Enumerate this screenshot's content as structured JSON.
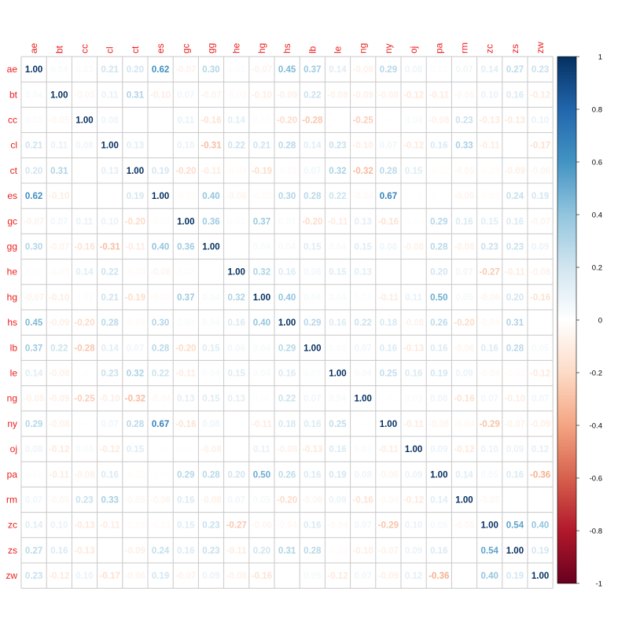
{
  "chart_data": {
    "type": "heatmap",
    "variables": [
      "ae",
      "bt",
      "cc",
      "cl",
      "ct",
      "es",
      "gc",
      "gg",
      "he",
      "hg",
      "hs",
      "lb",
      "le",
      "ng",
      "ny",
      "oj",
      "pa",
      "rm",
      "zc",
      "zs",
      "zw"
    ],
    "matrix": [
      [
        1.0,
        0.04,
        0.03,
        0.21,
        0.2,
        0.62,
        -0.07,
        0.3,
        0.02,
        -0.07,
        0.45,
        0.37,
        0.14,
        -0.08,
        0.29,
        0.08,
        0.02,
        0.07,
        0.14,
        0.27,
        0.23
      ],
      [
        0.04,
        1.0,
        -0.05,
        0.11,
        0.31,
        -0.1,
        0.07,
        -0.07,
        -0.03,
        -0.1,
        -0.09,
        0.22,
        -0.08,
        -0.09,
        -0.08,
        -0.12,
        -0.11,
        -0.05,
        0.1,
        0.16,
        -0.12
      ],
      [
        0.03,
        -0.05,
        1.0,
        0.08,
        null,
        null,
        0.11,
        -0.16,
        0.14,
        0.02,
        -0.2,
        -0.28,
        0.01,
        -0.25,
        0.01,
        0.04,
        -0.08,
        0.23,
        -0.13,
        -0.13,
        0.1
      ],
      [
        0.21,
        0.11,
        0.08,
        1.0,
        0.13,
        null,
        0.1,
        -0.31,
        0.22,
        0.21,
        0.28,
        0.14,
        0.23,
        -0.1,
        0.07,
        -0.12,
        0.16,
        0.33,
        -0.11,
        null,
        -0.17
      ],
      [
        0.2,
        0.31,
        null,
        0.13,
        1.0,
        0.19,
        -0.2,
        -0.11,
        -0.03,
        -0.19,
        -0.03,
        0.07,
        0.32,
        -0.32,
        0.28,
        0.15,
        -0.02,
        -0.05,
        -0.03,
        -0.09,
        -0.06
      ],
      [
        0.62,
        -0.1,
        null,
        null,
        0.19,
        1.0,
        -0.02,
        0.4,
        -0.06,
        -0.03,
        0.3,
        0.28,
        0.22,
        -0.04,
        0.67,
        0.01,
        -0.01,
        -0.06,
        -0.03,
        0.24,
        0.19
      ],
      [
        -0.07,
        0.07,
        0.11,
        0.1,
        -0.2,
        -0.02,
        1.0,
        0.36,
        0.02,
        0.37,
        0.03,
        -0.2,
        -0.11,
        0.13,
        -0.16,
        -0.01,
        0.29,
        0.16,
        0.15,
        0.16,
        -0.07
      ],
      [
        0.3,
        -0.07,
        -0.16,
        -0.31,
        -0.11,
        0.4,
        0.36,
        1.0,
        null,
        0.04,
        0.04,
        0.15,
        0.04,
        0.15,
        0.08,
        -0.08,
        0.28,
        -0.08,
        0.23,
        0.23,
        0.09
      ],
      [
        0.02,
        -0.03,
        0.14,
        0.22,
        -0.03,
        -0.06,
        0.02,
        null,
        1.0,
        0.32,
        0.16,
        0.06,
        0.15,
        0.13,
        null,
        null,
        0.2,
        0.07,
        -0.27,
        -0.11,
        -0.08
      ],
      [
        -0.07,
        -0.1,
        0.02,
        0.21,
        -0.19,
        -0.03,
        0.37,
        0.04,
        0.32,
        1.0,
        0.4,
        0.04,
        0.04,
        0.02,
        -0.11,
        0.11,
        0.5,
        0.05,
        -0.06,
        0.2,
        -0.16
      ],
      [
        0.45,
        -0.09,
        -0.2,
        0.28,
        -0.03,
        0.3,
        0.03,
        0.04,
        0.16,
        0.4,
        1.0,
        0.29,
        0.16,
        0.22,
        0.18,
        -0.08,
        0.26,
        -0.2,
        -0.04,
        0.31,
        null
      ],
      [
        0.37,
        0.22,
        -0.28,
        0.14,
        0.07,
        0.28,
        -0.2,
        0.15,
        0.06,
        0.04,
        0.29,
        1.0,
        0.03,
        0.07,
        0.16,
        -0.13,
        0.16,
        -0.06,
        0.16,
        0.28,
        0.05
      ],
      [
        0.14,
        -0.08,
        0.01,
        0.23,
        0.32,
        0.22,
        -0.11,
        0.04,
        0.15,
        0.04,
        0.16,
        0.03,
        1.0,
        0.04,
        0.25,
        0.16,
        0.19,
        0.09,
        -0.04,
        -0.02,
        -0.12
      ],
      [
        -0.08,
        -0.09,
        -0.25,
        -0.1,
        -0.32,
        -0.04,
        0.13,
        0.15,
        0.13,
        0.02,
        0.22,
        0.07,
        0.04,
        1.0,
        0.01,
        0.03,
        0.08,
        -0.16,
        0.07,
        -0.1,
        0.07
      ],
      [
        0.29,
        -0.08,
        0.01,
        0.07,
        0.28,
        0.67,
        -0.16,
        0.08,
        null,
        -0.11,
        0.18,
        0.16,
        0.25,
        0.01,
        1.0,
        -0.11,
        -0.06,
        -0.04,
        -0.29,
        -0.07,
        -0.09
      ],
      [
        0.08,
        -0.12,
        0.04,
        -0.12,
        0.15,
        0.01,
        -0.01,
        -0.08,
        null,
        0.11,
        -0.08,
        -0.13,
        0.16,
        0.03,
        -0.11,
        1.0,
        0.09,
        -0.12,
        0.1,
        0.09,
        0.12
      ],
      [
        0.02,
        -0.11,
        -0.08,
        0.16,
        -0.02,
        -0.01,
        0.29,
        0.28,
        0.2,
        0.5,
        0.26,
        0.16,
        0.19,
        0.08,
        -0.06,
        0.09,
        1.0,
        0.14,
        0.05,
        0.16,
        -0.36
      ],
      [
        0.07,
        -0.05,
        0.23,
        0.33,
        -0.05,
        -0.06,
        0.16,
        -0.08,
        0.07,
        0.05,
        -0.2,
        -0.06,
        0.09,
        -0.16,
        -0.04,
        -0.12,
        0.14,
        1.0,
        -0.05,
        null,
        null
      ],
      [
        0.14,
        0.1,
        -0.13,
        -0.11,
        -0.03,
        -0.03,
        0.15,
        0.23,
        -0.27,
        -0.06,
        -0.04,
        0.16,
        -0.04,
        0.07,
        -0.29,
        0.1,
        0.05,
        -0.05,
        1.0,
        0.54,
        0.4
      ],
      [
        0.27,
        0.16,
        -0.13,
        null,
        -0.09,
        0.24,
        0.16,
        0.23,
        -0.11,
        0.2,
        0.31,
        0.28,
        -0.02,
        -0.1,
        -0.07,
        0.09,
        0.16,
        null,
        0.54,
        1.0,
        0.19
      ],
      [
        0.23,
        -0.12,
        0.1,
        -0.17,
        -0.06,
        0.19,
        -0.07,
        0.09,
        -0.08,
        -0.16,
        null,
        0.05,
        -0.12,
        0.07,
        -0.09,
        0.12,
        -0.36,
        null,
        0.4,
        0.19,
        1.0
      ]
    ],
    "legend": {
      "ticks": [
        "1",
        "0.8",
        "0.6",
        "0.4",
        "0.2",
        "0",
        "-0.2",
        "-0.4",
        "-0.6",
        "-0.8",
        "-1"
      ],
      "range": [
        -1,
        1
      ],
      "placement": "right"
    },
    "colors": {
      "positive_end": "#053061",
      "neutral": "#ffffff",
      "negative_end": "#67001f",
      "label_color": "#ee1c1c",
      "grid_color": "#c8c8c8"
    },
    "grid": true
  }
}
